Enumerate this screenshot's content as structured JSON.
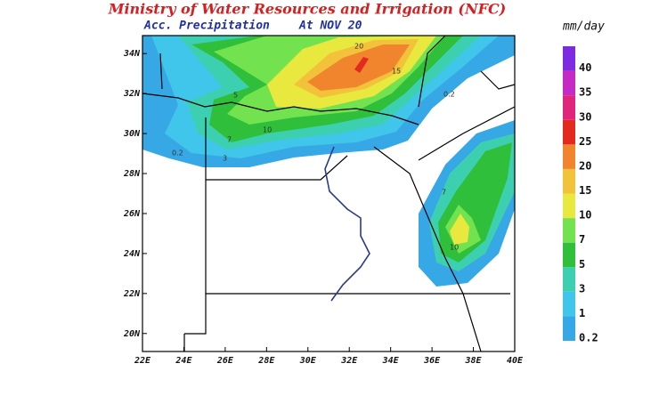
{
  "header": {
    "title": "Ministry of Water Resources and Irrigation (NFC)",
    "subtitle": "Acc. Precipitation",
    "date": "At NOV 20"
  },
  "map": {
    "xlim": [
      22,
      40
    ],
    "ylim": [
      19.1,
      34.9
    ],
    "lon_ticks": [
      {
        "value": 22,
        "label": "22E"
      },
      {
        "value": 24,
        "label": "24E"
      },
      {
        "value": 26,
        "label": "26E"
      },
      {
        "value": 28,
        "label": "28E"
      },
      {
        "value": 30,
        "label": "30E"
      },
      {
        "value": 32,
        "label": "32E"
      },
      {
        "value": 34,
        "label": "34E"
      },
      {
        "value": 36,
        "label": "36E"
      },
      {
        "value": 38,
        "label": "38E"
      },
      {
        "value": 40,
        "label": "40E"
      }
    ],
    "lat_ticks": [
      {
        "value": 20,
        "label": "20N"
      },
      {
        "value": 22,
        "label": "22N"
      },
      {
        "value": 24,
        "label": "24N"
      },
      {
        "value": 26,
        "label": "26N"
      },
      {
        "value": 28,
        "label": "28N"
      },
      {
        "value": 30,
        "label": "30N"
      },
      {
        "value": 32,
        "label": "32N"
      },
      {
        "value": 34,
        "label": "34N"
      }
    ],
    "contour_labels": [
      "20",
      "15",
      "10",
      "7",
      "5",
      "3",
      "0.2",
      "10",
      "7",
      "0.2"
    ]
  },
  "legend": {
    "unit": "mm/day",
    "levels": [
      0.2,
      1,
      3,
      5,
      7,
      10,
      15,
      20,
      25,
      30,
      35,
      40
    ],
    "colors": [
      "#36a8e6",
      "#3fc6ea",
      "#3dd0b0",
      "#2fbf3a",
      "#72e24f",
      "#e9e83e",
      "#f2c23a",
      "#f0852e",
      "#e22a1e",
      "#e0267c",
      "#c62ac4",
      "#7d2be0"
    ]
  }
}
